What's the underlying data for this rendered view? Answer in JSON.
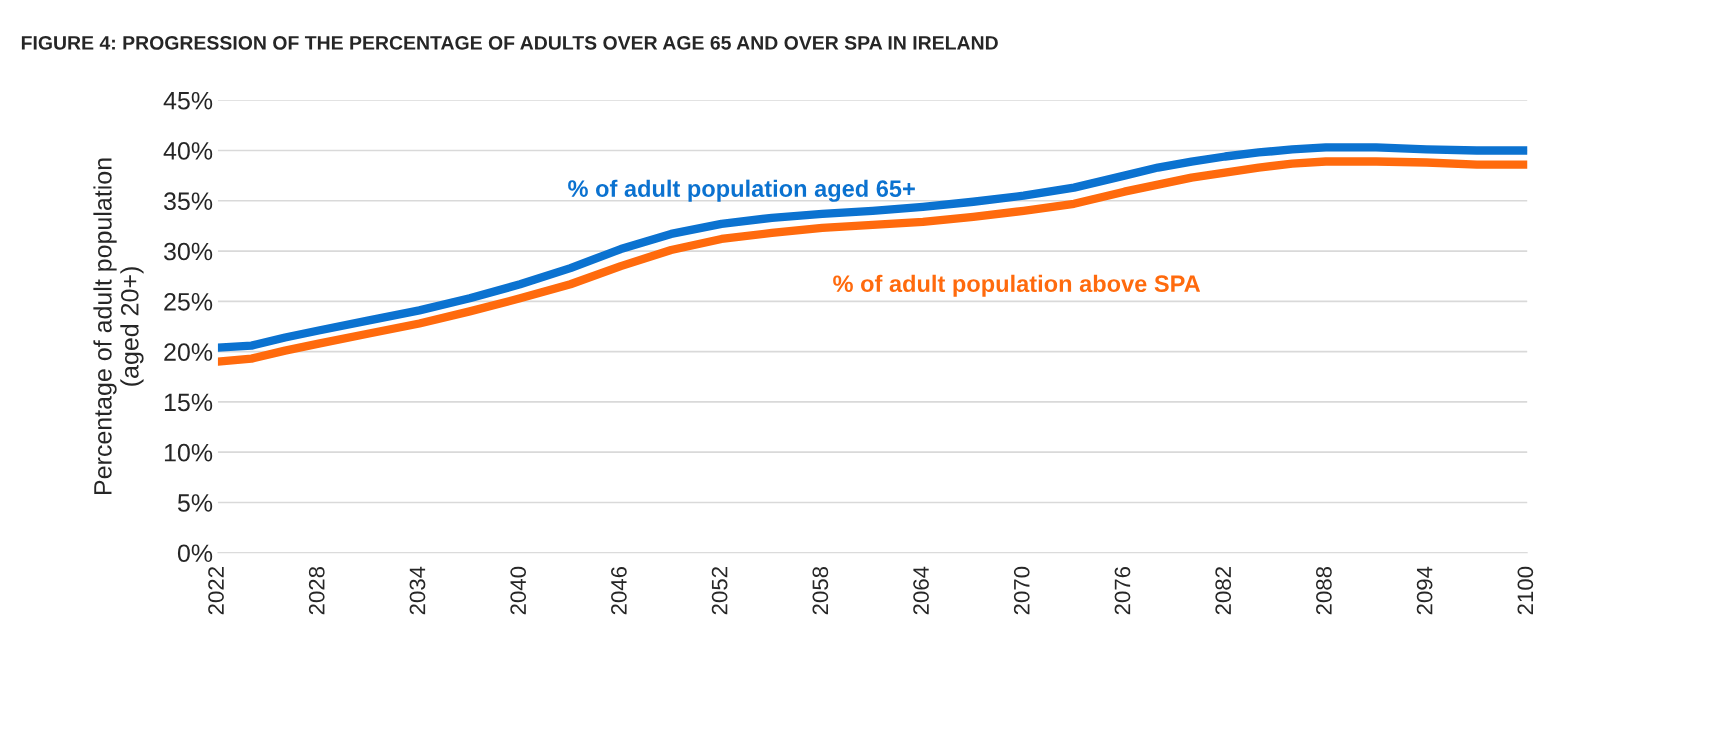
{
  "chart_data": {
    "type": "line",
    "title": "FIGURE 4: PROGRESSION OF THE PERCENTAGE OF ADULTS OVER AGE 65 AND OVER SPA IN IRELAND",
    "ylabel": "Percentage of adult population\n(aged 20+)",
    "x": [
      2022,
      2024,
      2026,
      2028,
      2031,
      2034,
      2037,
      2040,
      2043,
      2046,
      2049,
      2052,
      2055,
      2058,
      2061,
      2064,
      2067,
      2070,
      2073,
      2076,
      2078,
      2080,
      2082,
      2084,
      2086,
      2088,
      2091,
      2094,
      2097,
      2100
    ],
    "series": [
      {
        "name": "% of adult population aged 65+",
        "color": "#0b72d0",
        "values": [
          20.4,
          20.6,
          21.4,
          22.1,
          23.1,
          24.1,
          25.3,
          26.7,
          28.3,
          30.2,
          31.7,
          32.7,
          33.3,
          33.7,
          34.0,
          34.4,
          34.9,
          35.5,
          36.3,
          37.5,
          38.3,
          38.9,
          39.4,
          39.8,
          40.1,
          40.3,
          40.3,
          40.1,
          40.0,
          40.0
        ]
      },
      {
        "name": "% of adult population above SPA",
        "color": "#ff6a0d",
        "values": [
          19.0,
          19.3,
          20.1,
          20.8,
          21.8,
          22.8,
          24.0,
          25.3,
          26.7,
          28.5,
          30.1,
          31.2,
          31.8,
          32.3,
          32.6,
          32.9,
          33.4,
          34.0,
          34.7,
          35.9,
          36.6,
          37.3,
          37.8,
          38.3,
          38.7,
          38.9,
          38.9,
          38.8,
          38.6,
          38.6
        ]
      }
    ],
    "xlim": [
      2022,
      2100
    ],
    "xticks": [
      2022,
      2028,
      2034,
      2040,
      2046,
      2052,
      2058,
      2064,
      2070,
      2076,
      2082,
      2088,
      2094,
      2100
    ],
    "ylim": [
      0,
      45
    ],
    "yticks": [
      {
        "value": 0,
        "label": "0%"
      },
      {
        "value": 5,
        "label": "5%"
      },
      {
        "value": 10,
        "label": "10%"
      },
      {
        "value": 15,
        "label": "15%"
      },
      {
        "value": 20,
        "label": "20%"
      },
      {
        "value": 25,
        "label": "25%"
      },
      {
        "value": 30,
        "label": "30%"
      },
      {
        "value": 35,
        "label": "35%"
      },
      {
        "value": 40,
        "label": "40%"
      },
      {
        "value": 45,
        "label": "45%"
      }
    ],
    "grid": "y",
    "legend": false,
    "marker": "none",
    "line_style": "solid"
  }
}
